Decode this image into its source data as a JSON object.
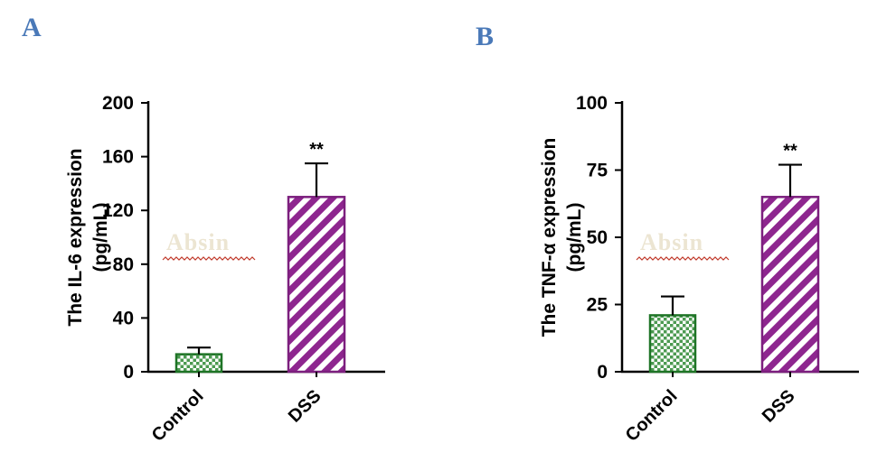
{
  "panels": [
    {
      "label": "A"
    },
    {
      "label": "B"
    }
  ],
  "chart_data": [
    {
      "type": "bar",
      "panel": "A",
      "ylabel": "The IL-6 expression",
      "ylabel_unit": "(pg/mL)",
      "categories": [
        "Control",
        "DSS"
      ],
      "values": [
        13,
        130
      ],
      "errors": [
        5,
        25
      ],
      "significance": [
        "",
        "**"
      ],
      "ylim": [
        0,
        200
      ],
      "yticks": [
        0,
        40,
        80,
        120,
        160,
        200
      ],
      "legend": "none",
      "grid": false
    },
    {
      "type": "bar",
      "panel": "B",
      "ylabel": "The TNF-α expression",
      "ylabel_unit": "(pg/mL)",
      "categories": [
        "Control",
        "DSS"
      ],
      "values": [
        21,
        65
      ],
      "errors": [
        7,
        12
      ],
      "significance": [
        "",
        "**"
      ],
      "ylim": [
        0,
        100
      ],
      "yticks": [
        0,
        25,
        50,
        75,
        100
      ],
      "legend": "none",
      "grid": false
    }
  ],
  "watermark": {
    "text": "Absin",
    "color": "#ece5d2",
    "underline_color": "#c0392b"
  },
  "colors": {
    "control_fill": "#4c9a51",
    "control_border": "#1e7426",
    "dss_fill": "#8e268f",
    "dss_border": "#7c1f7e",
    "axis": "#000000",
    "error_bar": "#000000",
    "panel_label": "#4a79b8"
  }
}
